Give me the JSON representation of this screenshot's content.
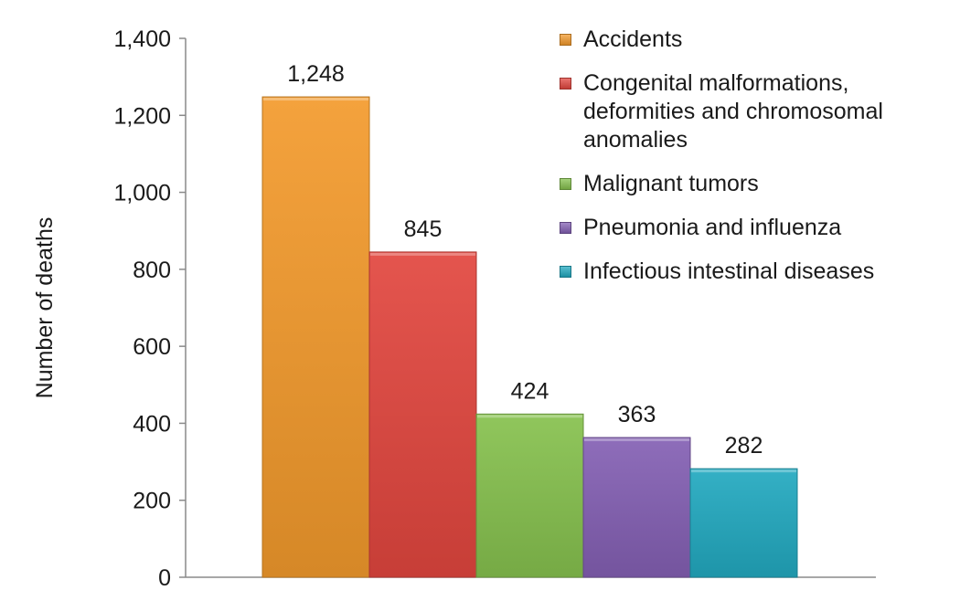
{
  "chart_data": {
    "type": "bar",
    "categories": [
      "Accidents",
      "Congenital malformations, deformities and chromosomal anomalies",
      "Malignant tumors",
      "Pneumonia and influenza",
      "Infectious intestinal diseases"
    ],
    "values": [
      1248,
      845,
      424,
      363,
      282
    ],
    "data_labels": [
      "1,248",
      "845",
      "424",
      "363",
      "282"
    ],
    "colors": [
      "#f39a2c",
      "#e2463f",
      "#86c14e",
      "#8460b4",
      "#22a9c0"
    ],
    "ylabel": "Number of deaths",
    "ylim": [
      0,
      1400
    ],
    "yticks": [
      0,
      200,
      400,
      600,
      800,
      1000,
      1200,
      1400
    ],
    "ytick_labels": [
      "0",
      "200",
      "400",
      "600",
      "800",
      "1,000",
      "1,200",
      "1,400"
    ],
    "grid": false,
    "legend_position": "top-right",
    "legend": [
      {
        "label": "Accidents",
        "color": "#f39a2c"
      },
      {
        "label": "Congenital malformations, deformities and chromosomal anomalies",
        "color": "#e2463f"
      },
      {
        "label": "Malignant tumors",
        "color": "#86c14e"
      },
      {
        "label": "Pneumonia and influenza",
        "color": "#8460b4"
      },
      {
        "label": "Infectious intestinal diseases",
        "color": "#22a9c0"
      }
    ]
  }
}
